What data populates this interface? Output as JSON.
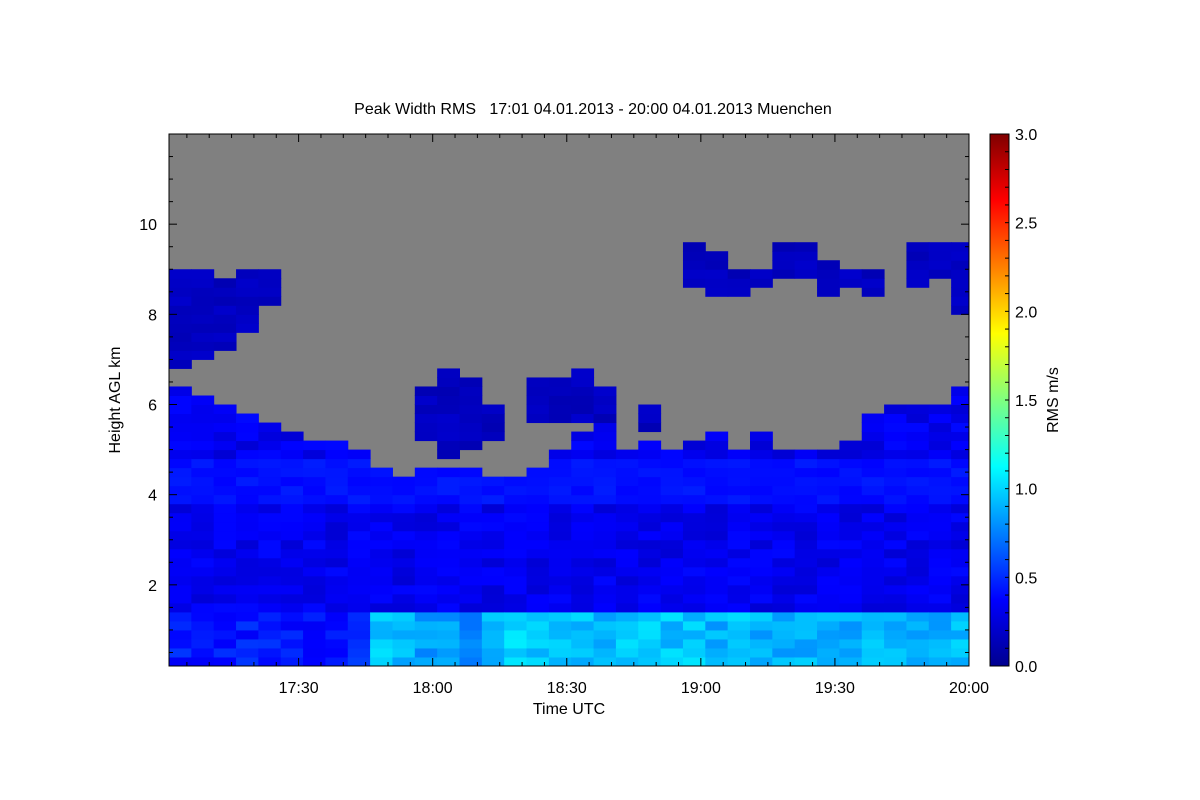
{
  "chart_data": {
    "type": "heatmap",
    "title": "Peak Width RMS   17:01 04.01.2013 - 20:00 04.01.2013 Muenchen",
    "xlabel": "Time UTC",
    "ylabel": "Height AGL km",
    "xlim_minutes_after_1700": [
      1,
      180
    ],
    "ylim": [
      0.2,
      12.0
    ],
    "x_ticks": [
      {
        "min": 30,
        "label": "17:30"
      },
      {
        "min": 60,
        "label": "18:00"
      },
      {
        "min": 90,
        "label": "18:30"
      },
      {
        "min": 120,
        "label": "19:00"
      },
      {
        "min": 150,
        "label": "19:30"
      },
      {
        "min": 180,
        "label": "20:00"
      }
    ],
    "y_ticks": [
      {
        "v": 2,
        "label": "2"
      },
      {
        "v": 4,
        "label": "4"
      },
      {
        "v": 6,
        "label": "6"
      },
      {
        "v": 8,
        "label": "8"
      },
      {
        "v": 10,
        "label": "10"
      }
    ],
    "colorbar": {
      "label": "RMS m/s",
      "range": [
        0.0,
        3.0
      ],
      "ticks": [
        "0.0",
        "0.5",
        "1.0",
        "1.5",
        "2.0",
        "2.5",
        "3.0"
      ]
    },
    "missing_color": "#808080",
    "boundary_layer_top_km": 1.3,
    "columns": [
      {
        "t": 1,
        "top": 6.3,
        "cloud": [
          6.8,
          9.0
        ],
        "bl": 0.45
      },
      {
        "t": 6,
        "top": 6.2,
        "cloud": [
          6.9,
          8.9
        ],
        "bl": 0.45
      },
      {
        "t": 11,
        "top": 6.0,
        "cloud": [
          7.2,
          8.8
        ],
        "bl": 0.45
      },
      {
        "t": 16,
        "top": 5.8,
        "cloud": [
          7.6,
          8.9
        ],
        "bl": 0.45
      },
      {
        "t": 21,
        "top": 5.6,
        "cloud": [
          8.2,
          8.9
        ],
        "bl": 0.45
      },
      {
        "t": 26,
        "top": 5.4,
        "cloud": null,
        "bl": 0.45
      },
      {
        "t": 31,
        "top": 5.2,
        "cloud": null,
        "bl": 0.45
      },
      {
        "t": 36,
        "top": 5.1,
        "cloud": null,
        "bl": 0.45
      },
      {
        "t": 41,
        "top": 4.9,
        "cloud": null,
        "bl": 0.5
      },
      {
        "t": 46,
        "top": 4.6,
        "cloud": null,
        "bl": 0.95
      },
      {
        "t": 51,
        "top": 4.4,
        "cloud": null,
        "bl": 0.9
      },
      {
        "t": 56,
        "top": 4.5,
        "cloud": [
          5.2,
          6.4
        ],
        "bl": 0.85
      },
      {
        "t": 61,
        "top": 4.6,
        "cloud": [
          4.8,
          6.8
        ],
        "bl": 0.85
      },
      {
        "t": 66,
        "top": 4.6,
        "cloud": [
          5.0,
          6.6
        ],
        "bl": 0.8
      },
      {
        "t": 71,
        "top": 4.4,
        "cloud": [
          5.2,
          6.0
        ],
        "bl": 0.95
      },
      {
        "t": 76,
        "top": 4.3,
        "cloud": null,
        "bl": 1.0
      },
      {
        "t": 81,
        "top": 4.5,
        "cloud": [
          5.5,
          6.5
        ],
        "bl": 0.95
      },
      {
        "t": 86,
        "top": 5.0,
        "cloud": [
          5.5,
          6.6
        ],
        "bl": 0.95
      },
      {
        "t": 91,
        "top": 5.3,
        "cloud": [
          5.5,
          6.8
        ],
        "bl": 0.95
      },
      {
        "t": 96,
        "top": 5.5,
        "cloud": [
          5.6,
          6.4
        ],
        "bl": 0.9
      },
      {
        "t": 101,
        "top": 5.0,
        "cloud": null,
        "bl": 0.95
      },
      {
        "t": 106,
        "top": 5.2,
        "cloud": [
          5.4,
          6.0
        ],
        "bl": 0.95
      },
      {
        "t": 111,
        "top": 5.0,
        "cloud": null,
        "bl": 0.95
      },
      {
        "t": 116,
        "top": 5.1,
        "cloud": [
          8.6,
          9.4
        ],
        "bl": 0.95
      },
      {
        "t": 121,
        "top": 5.3,
        "cloud": [
          8.3,
          9.3
        ],
        "bl": 0.9
      },
      {
        "t": 126,
        "top": 5.0,
        "cloud": [
          8.4,
          9.0
        ],
        "bl": 0.95
      },
      {
        "t": 131,
        "top": 5.4,
        "cloud": [
          8.6,
          9.0
        ],
        "bl": 0.9
      },
      {
        "t": 136,
        "top": 5.0,
        "cloud": [
          8.7,
          9.4
        ],
        "bl": 0.9
      },
      {
        "t": 141,
        "top": 5.0,
        "cloud": [
          8.8,
          9.5
        ],
        "bl": 0.9
      },
      {
        "t": 146,
        "top": 5.0,
        "cloud": [
          8.4,
          9.2
        ],
        "bl": 0.9
      },
      {
        "t": 151,
        "top": 5.2,
        "cloud": [
          8.6,
          9.0
        ],
        "bl": 0.9
      },
      {
        "t": 156,
        "top": 5.8,
        "cloud": [
          8.4,
          9.0
        ],
        "bl": 0.9
      },
      {
        "t": 161,
        "top": 5.9,
        "cloud": null,
        "bl": 0.9
      },
      {
        "t": 166,
        "top": 6.0,
        "cloud": [
          8.6,
          9.4
        ],
        "bl": 0.9
      },
      {
        "t": 171,
        "top": 5.9,
        "cloud": [
          8.8,
          9.5
        ],
        "bl": 0.9
      },
      {
        "t": 176,
        "top": 6.3,
        "cloud": [
          7.9,
          9.5
        ],
        "bl": 0.95
      }
    ]
  }
}
